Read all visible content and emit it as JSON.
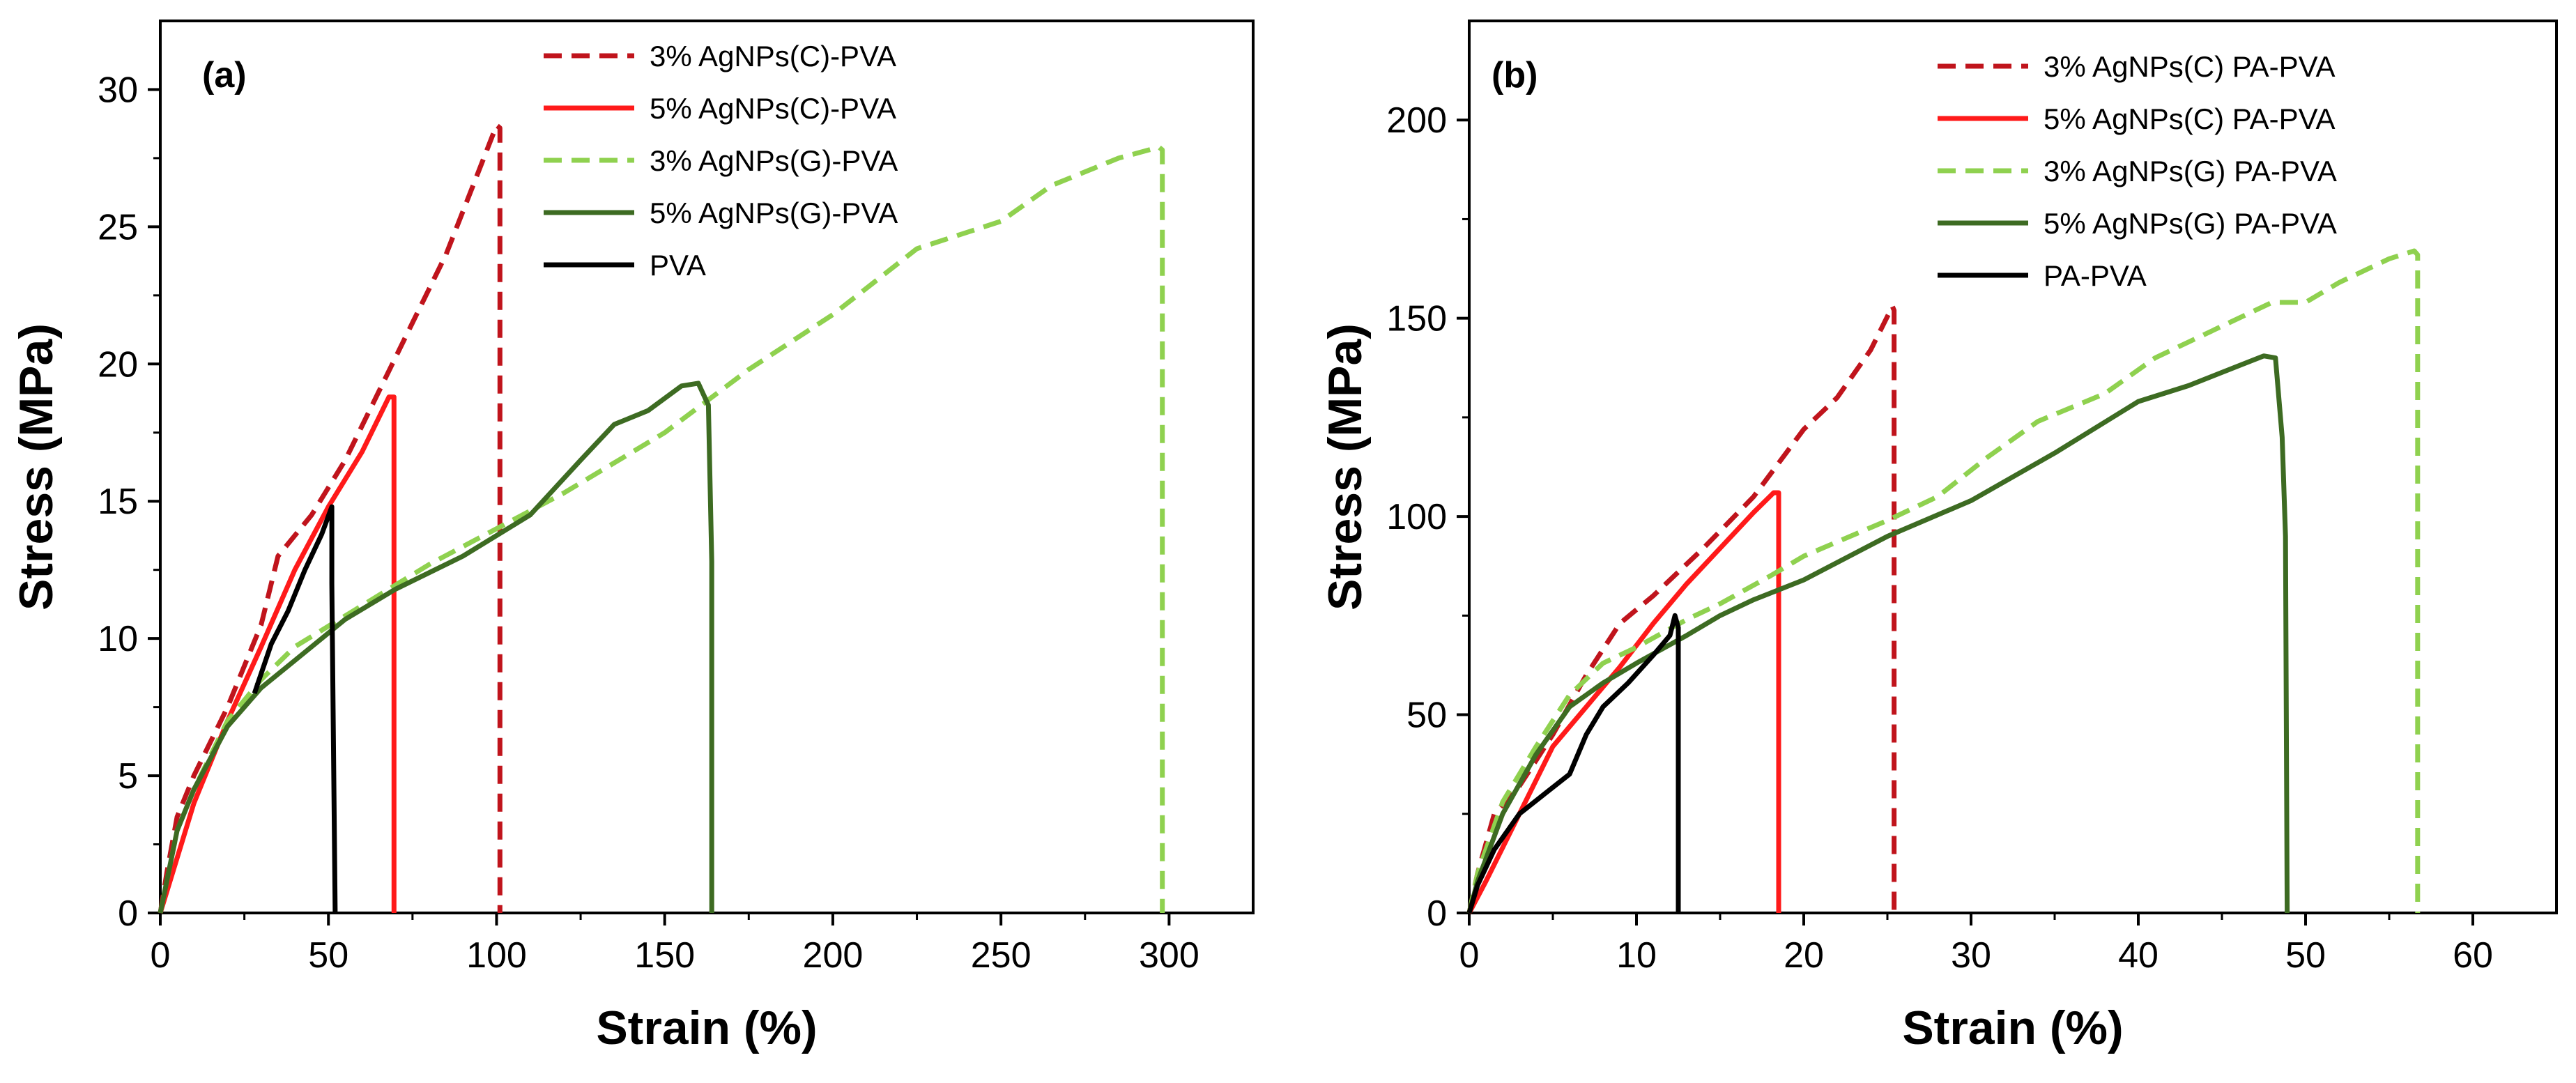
{
  "chart_data": [
    {
      "type": "line",
      "panel_label": "(a)",
      "xlabel": "Strain (%)",
      "ylabel": "Stress (MPa)",
      "xlim": [
        0,
        325
      ],
      "ylim": [
        0,
        32.5
      ],
      "xticks": [
        0,
        50,
        100,
        150,
        200,
        250,
        300
      ],
      "yticks": [
        0,
        5,
        10,
        15,
        20,
        25,
        30
      ],
      "grid": false,
      "legend_position": "top-center",
      "series": [
        {
          "name": "3% AgNPs(C)-PVA",
          "color": "#c0141c",
          "dash": true,
          "points": [
            [
              0,
              0
            ],
            [
              2,
              1.5
            ],
            [
              5,
              3.5
            ],
            [
              10,
              5
            ],
            [
              20,
              7.5
            ],
            [
              30,
              10.5
            ],
            [
              35,
              13
            ],
            [
              45,
              14.5
            ],
            [
              55,
              16.5
            ],
            [
              65,
              19
            ],
            [
              75,
              21.5
            ],
            [
              85,
              24
            ],
            [
              93,
              26.5
            ],
            [
              100,
              28.7
            ],
            [
              101,
              28.6
            ],
            [
              101,
              0
            ]
          ]
        },
        {
          "name": "5% AgNPs(C)-PVA",
          "color": "#ff1a1a",
          "dash": false,
          "points": [
            [
              0,
              0
            ],
            [
              5,
              2
            ],
            [
              10,
              4
            ],
            [
              20,
              7
            ],
            [
              30,
              9.7
            ],
            [
              40,
              12.5
            ],
            [
              50,
              14.8
            ],
            [
              60,
              16.8
            ],
            [
              68,
              18.8
            ],
            [
              69.5,
              18.8
            ],
            [
              69.5,
              0
            ]
          ]
        },
        {
          "name": "3% AgNPs(G)-PVA",
          "color": "#8fd14f",
          "dash": true,
          "points": [
            [
              0,
              0
            ],
            [
              5,
              3
            ],
            [
              10,
              4.5
            ],
            [
              20,
              7
            ],
            [
              30,
              8.5
            ],
            [
              40,
              9.7
            ],
            [
              60,
              11.2
            ],
            [
              80,
              12.7
            ],
            [
              100,
              14
            ],
            [
              120,
              15.3
            ],
            [
              150,
              17.5
            ],
            [
              175,
              19.8
            ],
            [
              200,
              21.8
            ],
            [
              225,
              24.2
            ],
            [
              250,
              25.2
            ],
            [
              265,
              26.5
            ],
            [
              285,
              27.5
            ],
            [
              297,
              27.9
            ],
            [
              298,
              27.8
            ],
            [
              298,
              0
            ]
          ]
        },
        {
          "name": "5% AgNPs(G)-PVA",
          "color": "#3d6b22",
          "dash": false,
          "points": [
            [
              0,
              0
            ],
            [
              5,
              3
            ],
            [
              10,
              4.5
            ],
            [
              20,
              6.8
            ],
            [
              30,
              8.2
            ],
            [
              40,
              9.2
            ],
            [
              55,
              10.7
            ],
            [
              70,
              11.8
            ],
            [
              90,
              13
            ],
            [
              110,
              14.5
            ],
            [
              125,
              16.5
            ],
            [
              135,
              17.8
            ],
            [
              145,
              18.3
            ],
            [
              155,
              19.2
            ],
            [
              160,
              19.3
            ],
            [
              163,
              18.5
            ],
            [
              164,
              12.8
            ],
            [
              164,
              0
            ]
          ]
        },
        {
          "name": "PVA",
          "color": "#000000",
          "dash": false,
          "points": [
            [
              28,
              8
            ],
            [
              33,
              9.8
            ],
            [
              38,
              11
            ],
            [
              43,
              12.5
            ],
            [
              48,
              13.8
            ],
            [
              51,
              14.8
            ],
            [
              51,
              12
            ],
            [
              52,
              0
            ]
          ]
        }
      ]
    },
    {
      "type": "line",
      "panel_label": "(b)",
      "xlabel": "Strain (%)",
      "ylabel": "Stress (MPa)",
      "xlim": [
        0,
        65
      ],
      "ylim": [
        0,
        225
      ],
      "xticks": [
        0,
        10,
        20,
        30,
        40,
        50,
        60
      ],
      "yticks": [
        0,
        50,
        100,
        150,
        200
      ],
      "grid": false,
      "legend_position": "top-right",
      "series": [
        {
          "name": "3% AgNPs(C) PA-PVA",
          "color": "#c0141c",
          "dash": true,
          "points": [
            [
              0,
              0
            ],
            [
              0.5,
              10
            ],
            [
              1.5,
              25
            ],
            [
              3,
              32
            ],
            [
              5,
              45
            ],
            [
              7,
              60
            ],
            [
              9,
              73
            ],
            [
              11,
              80
            ],
            [
              14,
              92
            ],
            [
              17,
              105
            ],
            [
              20,
              122
            ],
            [
              22,
              130
            ],
            [
              24,
              142
            ],
            [
              25.3,
              153
            ],
            [
              25.4,
              152
            ],
            [
              25.4,
              0
            ]
          ]
        },
        {
          "name": "5% AgNPs(C) PA-PVA",
          "color": "#ff1a1a",
          "dash": false,
          "points": [
            [
              0,
              0
            ],
            [
              1,
              8
            ],
            [
              3,
              25
            ],
            [
              5,
              42
            ],
            [
              7,
              52
            ],
            [
              9,
              62
            ],
            [
              11,
              73
            ],
            [
              13,
              83
            ],
            [
              15,
              92
            ],
            [
              17,
              101
            ],
            [
              18.2,
              106
            ],
            [
              18.5,
              106
            ],
            [
              18.5,
              0
            ]
          ]
        },
        {
          "name": "3% AgNPs(G) PA-PVA",
          "color": "#8fd14f",
          "dash": true,
          "points": [
            [
              0,
              0
            ],
            [
              0.5,
              10
            ],
            [
              2,
              28
            ],
            [
              4,
              42
            ],
            [
              6,
              55
            ],
            [
              8,
              63
            ],
            [
              10,
              67
            ],
            [
              13,
              74
            ],
            [
              15,
              78
            ],
            [
              18,
              85
            ],
            [
              20,
              90
            ],
            [
              25,
              99
            ],
            [
              28,
              105
            ],
            [
              31,
              115
            ],
            [
              34,
              124
            ],
            [
              38,
              131
            ],
            [
              41,
              140
            ],
            [
              45,
              148
            ],
            [
              48,
              154
            ],
            [
              50,
              154
            ],
            [
              52,
              159
            ],
            [
              55,
              165
            ],
            [
              56.5,
              167
            ],
            [
              56.7,
              166
            ],
            [
              56.7,
              0
            ]
          ]
        },
        {
          "name": "5% AgNPs(G) PA-PVA",
          "color": "#3d6b22",
          "dash": false,
          "points": [
            [
              0,
              0
            ],
            [
              0.5,
              8
            ],
            [
              2,
              25
            ],
            [
              4,
              40
            ],
            [
              6,
              52
            ],
            [
              8,
              58
            ],
            [
              10,
              63
            ],
            [
              13,
              70
            ],
            [
              15,
              75
            ],
            [
              17,
              79
            ],
            [
              20,
              84
            ],
            [
              25,
              95
            ],
            [
              30,
              104
            ],
            [
              35,
              116
            ],
            [
              40,
              129
            ],
            [
              43,
              133
            ],
            [
              46,
              138
            ],
            [
              47.5,
              140.5
            ],
            [
              48.2,
              140
            ],
            [
              48.6,
              120
            ],
            [
              48.8,
              95
            ],
            [
              48.9,
              0
            ]
          ]
        },
        {
          "name": "PA-PVA",
          "color": "#000000",
          "dash": false,
          "points": [
            [
              0,
              0
            ],
            [
              0.5,
              7
            ],
            [
              1.5,
              16
            ],
            [
              3,
              25
            ],
            [
              4.5,
              30
            ],
            [
              6,
              35
            ],
            [
              7,
              45
            ],
            [
              8,
              52
            ],
            [
              9.5,
              58
            ],
            [
              11,
              65
            ],
            [
              12,
              70
            ],
            [
              12.3,
              75
            ],
            [
              12.5,
              72
            ],
            [
              12.5,
              0
            ]
          ]
        }
      ]
    }
  ]
}
